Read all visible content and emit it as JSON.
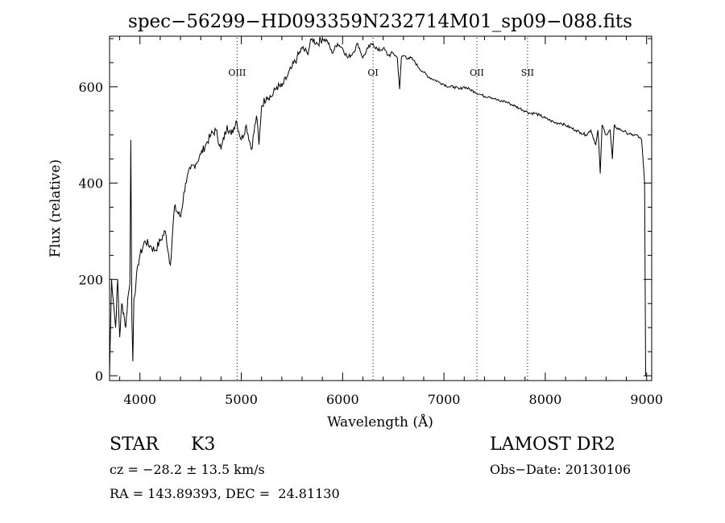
{
  "chart_data": {
    "type": "line",
    "title": "spec−56299−HD093359N232714M01_sp09−088.fits",
    "xlabel": "Wavelength (Å)",
    "ylabel": "Flux (relative)",
    "xlim": [
      3700,
      9050
    ],
    "ylim": [
      -10,
      705
    ],
    "xticks": [
      4000,
      5000,
      6000,
      7000,
      8000,
      9000
    ],
    "yticks": [
      0,
      200,
      400,
      600
    ],
    "line_markers": [
      {
        "label": "OIII",
        "x": 4959
      },
      {
        "label": "OI",
        "x": 6300
      },
      {
        "label": "OII",
        "x": 7325
      },
      {
        "label": "SII",
        "x": 7825
      }
    ],
    "series": [
      {
        "x": [
          3700,
          3720,
          3740,
          3760,
          3780,
          3800,
          3820,
          3840,
          3860,
          3880,
          3900,
          3910,
          3920,
          3930,
          3940,
          3960,
          3980,
          4000,
          4050,
          4100,
          4150,
          4200,
          4250,
          4300,
          4340,
          4400,
          4450,
          4500,
          4550,
          4600,
          4650,
          4700,
          4750,
          4800,
          4860,
          4900,
          4950,
          5000,
          5050,
          5100,
          5150,
          5175,
          5200,
          5250,
          5300,
          5350,
          5400,
          5450,
          5500,
          5550,
          5600,
          5650,
          5700,
          5750,
          5800,
          5850,
          5895,
          5950,
          6000,
          6050,
          6100,
          6150,
          6200,
          6250,
          6300,
          6350,
          6400,
          6450,
          6500,
          6540,
          6563,
          6580,
          6600,
          6650,
          6700,
          6750,
          6800,
          6850,
          6900,
          6950,
          7000,
          7050,
          7100,
          7150,
          7200,
          7250,
          7300,
          7350,
          7400,
          7450,
          7500,
          7550,
          7600,
          7650,
          7700,
          7750,
          7800,
          7850,
          7900,
          7950,
          8000,
          8050,
          8100,
          8150,
          8200,
          8250,
          8300,
          8350,
          8400,
          8450,
          8498,
          8520,
          8542,
          8560,
          8600,
          8640,
          8662,
          8680,
          8700,
          8750,
          8800,
          8850,
          8900,
          8950,
          8980,
          8990,
          9000
        ],
        "y": [
          0,
          200,
          150,
          100,
          200,
          80,
          150,
          130,
          100,
          160,
          190,
          490,
          120,
          30,
          160,
          190,
          230,
          250,
          280,
          270,
          260,
          280,
          300,
          230,
          350,
          330,
          400,
          430,
          440,
          460,
          480,
          500,
          510,
          470,
          520,
          500,
          530,
          490,
          520,
          470,
          540,
          480,
          560,
          580,
          580,
          600,
          600,
          620,
          640,
          660,
          680,
          670,
          700,
          690,
          700,
          695,
          670,
          690,
          680,
          660,
          670,
          690,
          660,
          680,
          690,
          675,
          680,
          665,
          670,
          660,
          595,
          660,
          665,
          660,
          655,
          640,
          630,
          620,
          615,
          610,
          605,
          600,
          600,
          595,
          600,
          595,
          590,
          585,
          580,
          580,
          575,
          570,
          570,
          565,
          560,
          555,
          550,
          545,
          545,
          540,
          535,
          530,
          525,
          525,
          520,
          515,
          510,
          505,
          500,
          510,
          480,
          510,
          420,
          520,
          500,
          510,
          450,
          520,
          515,
          510,
          505,
          500,
          500,
          490,
          400,
          0,
          0
        ]
      }
    ]
  },
  "info": {
    "object_class": "STAR",
    "subclass": "K3",
    "redshift": "cz = −28.2 ± 13.5 km/s",
    "coords": "RA = 143.89393, DEC =  24.81130",
    "survey": "LAMOST DR2",
    "obs_date": "Obs−Date: 20130106"
  }
}
